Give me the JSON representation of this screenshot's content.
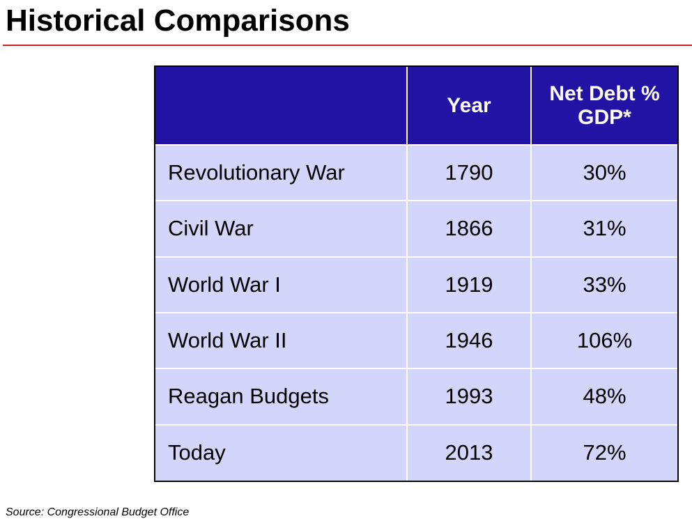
{
  "title": "Historical Comparisons",
  "colors": {
    "title_rule": "#c8201e",
    "header_background": "#2313a4",
    "header_text": "#ffffff",
    "row_background": "#d3d5fa",
    "table_border": "#000000"
  },
  "table": {
    "headers": [
      "",
      "Year",
      "Net Debt % GDP*"
    ],
    "rows": [
      {
        "event": "Revolutionary War",
        "year": "1790",
        "net_debt_pct_gdp": "30%"
      },
      {
        "event": "Civil War",
        "year": "1866",
        "net_debt_pct_gdp": "31%"
      },
      {
        "event": "World War I",
        "year": "1919",
        "net_debt_pct_gdp": "33%"
      },
      {
        "event": "World War II",
        "year": "1946",
        "net_debt_pct_gdp": "106%"
      },
      {
        "event": "Reagan Budgets",
        "year": "1993",
        "net_debt_pct_gdp": "48%"
      },
      {
        "event": "Today",
        "year": "2013",
        "net_debt_pct_gdp": "72%"
      }
    ]
  },
  "source": "Source: Congressional Budget Office"
}
